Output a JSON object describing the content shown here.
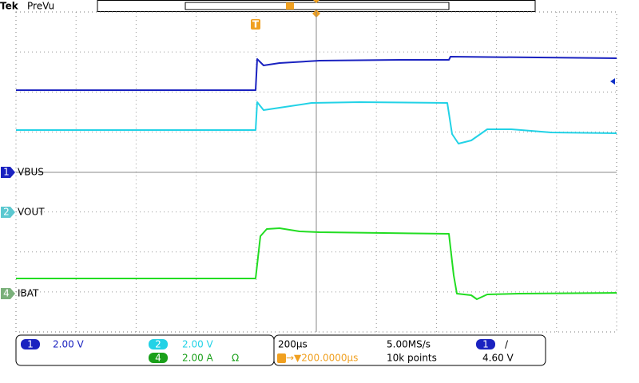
{
  "header": {
    "brand": "Tek",
    "mode": "PreVu"
  },
  "trigger_marker": "T",
  "channels": [
    {
      "number": "1",
      "label": "VBUS"
    },
    {
      "number": "2",
      "label": "VOUT"
    },
    {
      "number": "4",
      "label": "IBAT"
    }
  ],
  "readout": {
    "ch1": {
      "number": "1",
      "scale": "2.00 V"
    },
    "ch2": {
      "number": "2",
      "scale": "2.00 V"
    },
    "ch4": {
      "number": "4",
      "scale": "2.00 A",
      "extra": "Ω"
    },
    "timebase": "200µs",
    "sample_rate": "5.00MS/s",
    "trigger_position": "→▼200.0000µs",
    "record_length": "10k points",
    "trigger_source": "1",
    "trigger_slope": "/",
    "trigger_level": "4.60 V"
  }
}
